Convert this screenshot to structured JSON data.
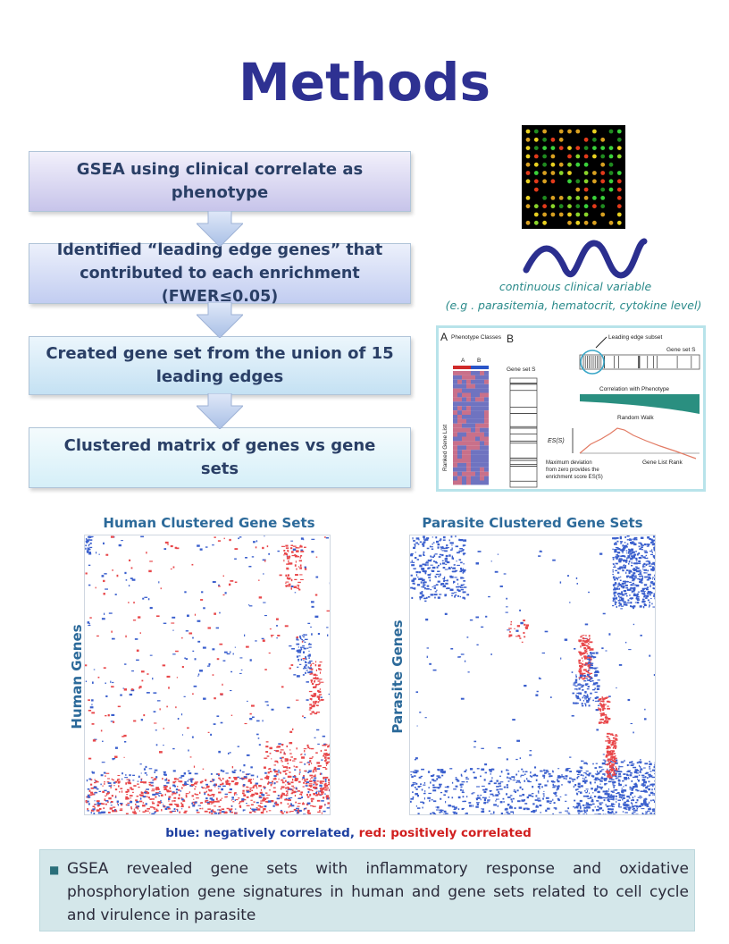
{
  "title": "Methods",
  "flow": [
    {
      "label": "GSEA using clinical correlate as phenotype"
    },
    {
      "label": "Identified “leading edge genes” that contributed to each enrichment (FWER≤0.05)"
    },
    {
      "label": "Created gene set from the union of 15 leading edges"
    },
    {
      "label": "Clustered matrix of genes vs gene sets"
    }
  ],
  "clinical": {
    "line1": "continuous clinical variable",
    "line2": "(e.g . parasitemia, hematocrit, cytokine level)"
  },
  "gsea_figure": {
    "panel_a": "A",
    "panel_b": "B",
    "phenotype_classes": "Phenotype Classes",
    "class_a": "A",
    "class_b": "B",
    "ranked_gene_list": "Ranked Gene List",
    "gene_set_s": "Gene set S",
    "leading_edge": "Leading edge subset",
    "gene_set_s2": "Gene set S",
    "correlation": "Correlation with Phenotype",
    "random_walk": "Random Walk",
    "es": "ES(S)",
    "gene_list_rank": "Gene List Rank",
    "max_dev_1": "Maximum deviation",
    "max_dev_2": "from zero provides the",
    "max_dev_3": "enrichment score ES(S)"
  },
  "heatmaps": {
    "human_title": "Human Clustered Gene Sets",
    "parasite_title": "Parasite Clustered Gene Sets",
    "human_ylabel": "Human Genes",
    "parasite_ylabel": "Parasite Genes",
    "colors": {
      "negative": "#3a5fcd",
      "positive": "#e8474a"
    }
  },
  "legend": {
    "blue_text": "blue: negatively correlated",
    "separator": ", ",
    "red_text": "red: positively correlated"
  },
  "summary": "GSEA revealed gene sets with inflammatory response and oxidative phosphorylation gene signatures in human and gene sets related to cell cycle and virulence in parasite"
}
